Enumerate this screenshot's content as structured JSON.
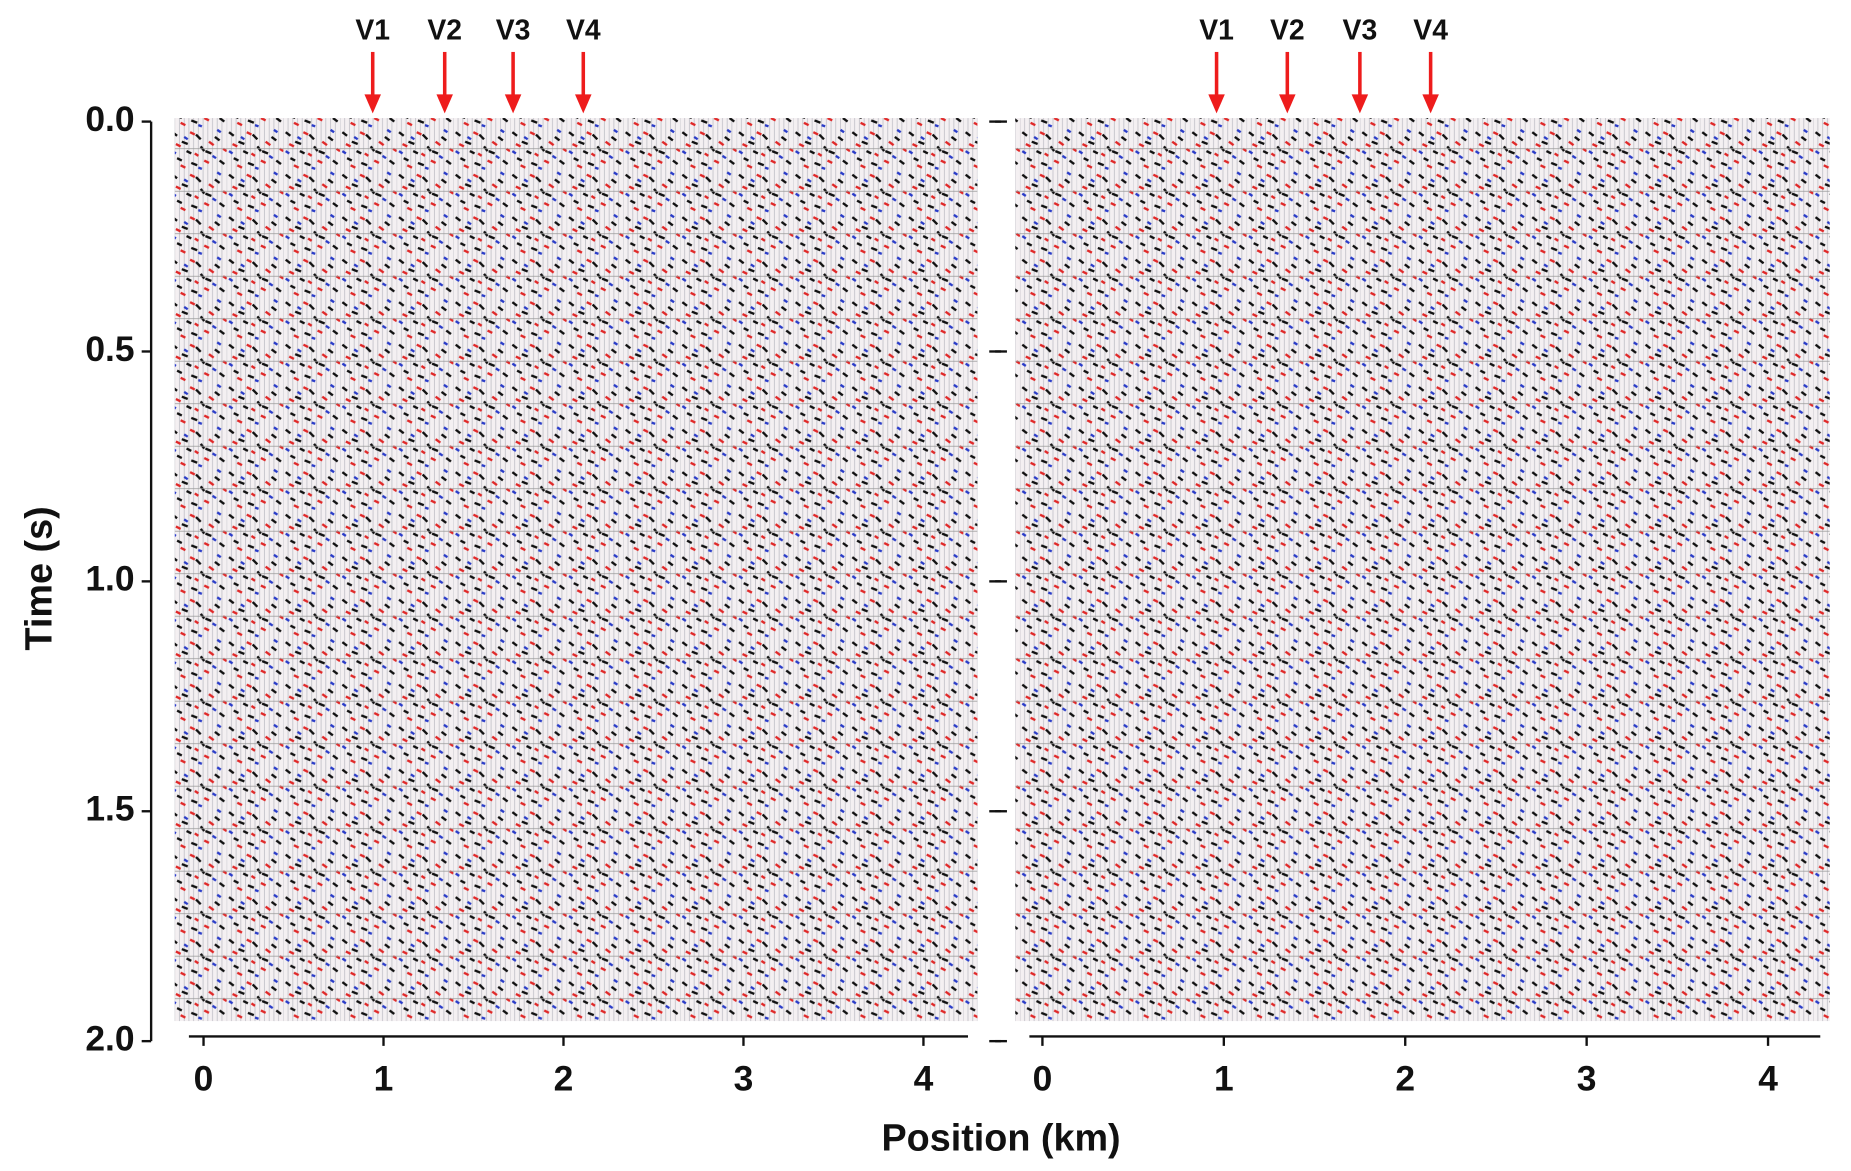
{
  "chart_data": [
    {
      "type": "seismic",
      "ylabel": "Time (s)",
      "xlim": [
        -0.16,
        4.3
      ],
      "ylim": [
        0,
        2
      ],
      "xticks": [
        0,
        1,
        2,
        3,
        4
      ],
      "yticks": [
        {
          "value": 0,
          "label": "0.0"
        },
        {
          "value": 0.5,
          "label": "0.5"
        },
        {
          "value": 1,
          "label": "1.0"
        },
        {
          "value": 1.5,
          "label": "1.5"
        },
        {
          "value": 2,
          "label": "2.0"
        }
      ],
      "markers": {
        "x": [
          0.94,
          1.34,
          1.72,
          2.11
        ],
        "labels": [
          "V1",
          "V2",
          "V3",
          "V4"
        ],
        "color": "#ee1c1c"
      }
    },
    {
      "type": "seismic",
      "xlim": [
        -0.15,
        4.34
      ],
      "ylim": [
        0,
        2
      ],
      "xticks": [
        0,
        1,
        2,
        3,
        4
      ],
      "markers": {
        "x": [
          0.96,
          1.35,
          1.75,
          2.14
        ],
        "labels": [
          "V1",
          "V2",
          "V3",
          "V4"
        ],
        "color": "#ee1c1c"
      }
    }
  ],
  "xlabel": "Position (km)"
}
